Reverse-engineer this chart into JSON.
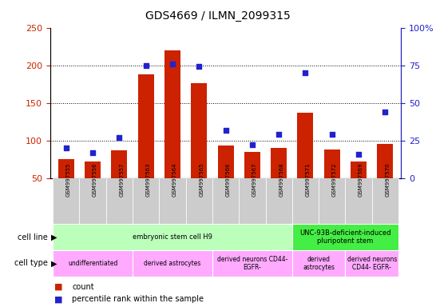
{
  "title": "GDS4669 / ILMN_2099315",
  "samples": [
    "GSM997555",
    "GSM997556",
    "GSM997557",
    "GSM997563",
    "GSM997564",
    "GSM997565",
    "GSM997566",
    "GSM997567",
    "GSM997568",
    "GSM997571",
    "GSM997572",
    "GSM997569",
    "GSM997570"
  ],
  "counts": [
    75,
    72,
    87,
    188,
    220,
    176,
    93,
    85,
    90,
    137,
    88,
    72,
    95
  ],
  "percentiles": [
    20,
    17,
    27,
    75,
    76,
    74,
    32,
    22,
    29,
    70,
    29,
    16,
    44
  ],
  "bar_color": "#cc2200",
  "dot_color": "#2222cc",
  "left_ylim": [
    50,
    250
  ],
  "left_yticks": [
    50,
    100,
    150,
    200,
    250
  ],
  "right_ylim": [
    0,
    100
  ],
  "right_yticks": [
    0,
    25,
    50,
    75,
    100
  ],
  "cell_line_groups": [
    {
      "label": "embryonic stem cell H9",
      "start": 0,
      "end": 9,
      "color": "#bbffbb"
    },
    {
      "label": "UNC-93B-deficient-induced\npluripotent stem",
      "start": 9,
      "end": 13,
      "color": "#44ee44"
    }
  ],
  "cell_type_groups": [
    {
      "label": "undifferentiated",
      "start": 0,
      "end": 3,
      "color": "#ffaaff"
    },
    {
      "label": "derived astrocytes",
      "start": 3,
      "end": 6,
      "color": "#ffaaff"
    },
    {
      "label": "derived neurons CD44-\nEGFR-",
      "start": 6,
      "end": 9,
      "color": "#ffaaff"
    },
    {
      "label": "derived\nastrocytes",
      "start": 9,
      "end": 11,
      "color": "#ffaaff"
    },
    {
      "label": "derived neurons\nCD44- EGFR-",
      "start": 11,
      "end": 13,
      "color": "#ffaaff"
    }
  ],
  "left_ylabel_color": "#cc2200",
  "right_ylabel_color": "#2222cc",
  "tick_bg_color": "#cccccc"
}
